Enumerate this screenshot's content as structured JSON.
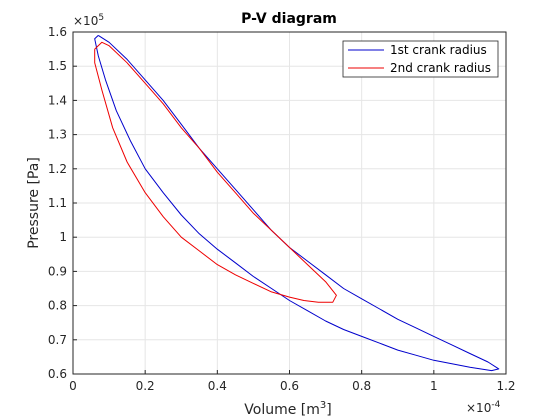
{
  "chart_data": {
    "type": "line",
    "title": "P-V diagram",
    "xlabel": "Volume [m",
    "xlabel_sup": "3",
    "xlabel_close": "]",
    "ylabel": "Pressure [Pa]",
    "x_exponent": "×10",
    "x_exponent_power": "-4",
    "y_exponent": "×10",
    "y_exponent_power": "5",
    "xlim": [
      0,
      1.2
    ],
    "ylim": [
      0.6,
      1.6
    ],
    "x_ticks": [
      "0",
      "0.2",
      "0.4",
      "0.6",
      "0.8",
      "1",
      "1.2"
    ],
    "y_ticks": [
      "0.6",
      "0.7",
      "0.8",
      "0.9",
      "1",
      "1.1",
      "1.2",
      "1.3",
      "1.4",
      "1.5",
      "1.6"
    ],
    "grid": true,
    "legend_position": "top-right",
    "series": [
      {
        "name": "1st crank radius",
        "color": "#0000cc",
        "points": [
          [
            0.07,
            1.59
          ],
          [
            0.1,
            1.57
          ],
          [
            0.15,
            1.52
          ],
          [
            0.2,
            1.46
          ],
          [
            0.25,
            1.4
          ],
          [
            0.3,
            1.33
          ],
          [
            0.35,
            1.26
          ],
          [
            0.4,
            1.2
          ],
          [
            0.45,
            1.14
          ],
          [
            0.5,
            1.08
          ],
          [
            0.55,
            1.02
          ],
          [
            0.6,
            0.97
          ],
          [
            0.65,
            0.93
          ],
          [
            0.7,
            0.89
          ],
          [
            0.75,
            0.85
          ],
          [
            0.8,
            0.82
          ],
          [
            0.85,
            0.79
          ],
          [
            0.9,
            0.76
          ],
          [
            0.95,
            0.735
          ],
          [
            1.0,
            0.71
          ],
          [
            1.05,
            0.685
          ],
          [
            1.1,
            0.66
          ],
          [
            1.15,
            0.635
          ],
          [
            1.18,
            0.615
          ],
          [
            1.16,
            0.61
          ],
          [
            1.1,
            0.62
          ],
          [
            1.05,
            0.63
          ],
          [
            1.0,
            0.64
          ],
          [
            0.95,
            0.655
          ],
          [
            0.9,
            0.67
          ],
          [
            0.85,
            0.69
          ],
          [
            0.8,
            0.71
          ],
          [
            0.75,
            0.73
          ],
          [
            0.7,
            0.755
          ],
          [
            0.65,
            0.785
          ],
          [
            0.6,
            0.815
          ],
          [
            0.55,
            0.85
          ],
          [
            0.5,
            0.885
          ],
          [
            0.45,
            0.925
          ],
          [
            0.4,
            0.965
          ],
          [
            0.35,
            1.01
          ],
          [
            0.3,
            1.065
          ],
          [
            0.25,
            1.13
          ],
          [
            0.2,
            1.2
          ],
          [
            0.16,
            1.28
          ],
          [
            0.12,
            1.37
          ],
          [
            0.09,
            1.46
          ],
          [
            0.07,
            1.53
          ],
          [
            0.06,
            1.58
          ],
          [
            0.07,
            1.59
          ]
        ]
      },
      {
        "name": "2nd crank radius",
        "color": "#ee0000",
        "points": [
          [
            0.06,
            1.55
          ],
          [
            0.08,
            1.57
          ],
          [
            0.1,
            1.56
          ],
          [
            0.15,
            1.51
          ],
          [
            0.2,
            1.45
          ],
          [
            0.25,
            1.39
          ],
          [
            0.3,
            1.32
          ],
          [
            0.35,
            1.26
          ],
          [
            0.4,
            1.19
          ],
          [
            0.45,
            1.13
          ],
          [
            0.5,
            1.07
          ],
          [
            0.55,
            1.02
          ],
          [
            0.6,
            0.97
          ],
          [
            0.65,
            0.92
          ],
          [
            0.7,
            0.87
          ],
          [
            0.73,
            0.83
          ],
          [
            0.72,
            0.81
          ],
          [
            0.68,
            0.81
          ],
          [
            0.64,
            0.815
          ],
          [
            0.6,
            0.825
          ],
          [
            0.55,
            0.84
          ],
          [
            0.5,
            0.865
          ],
          [
            0.45,
            0.89
          ],
          [
            0.4,
            0.92
          ],
          [
            0.35,
            0.96
          ],
          [
            0.3,
            1.0
          ],
          [
            0.25,
            1.06
          ],
          [
            0.2,
            1.13
          ],
          [
            0.15,
            1.22
          ],
          [
            0.11,
            1.32
          ],
          [
            0.08,
            1.43
          ],
          [
            0.06,
            1.51
          ],
          [
            0.06,
            1.55
          ]
        ]
      }
    ]
  }
}
